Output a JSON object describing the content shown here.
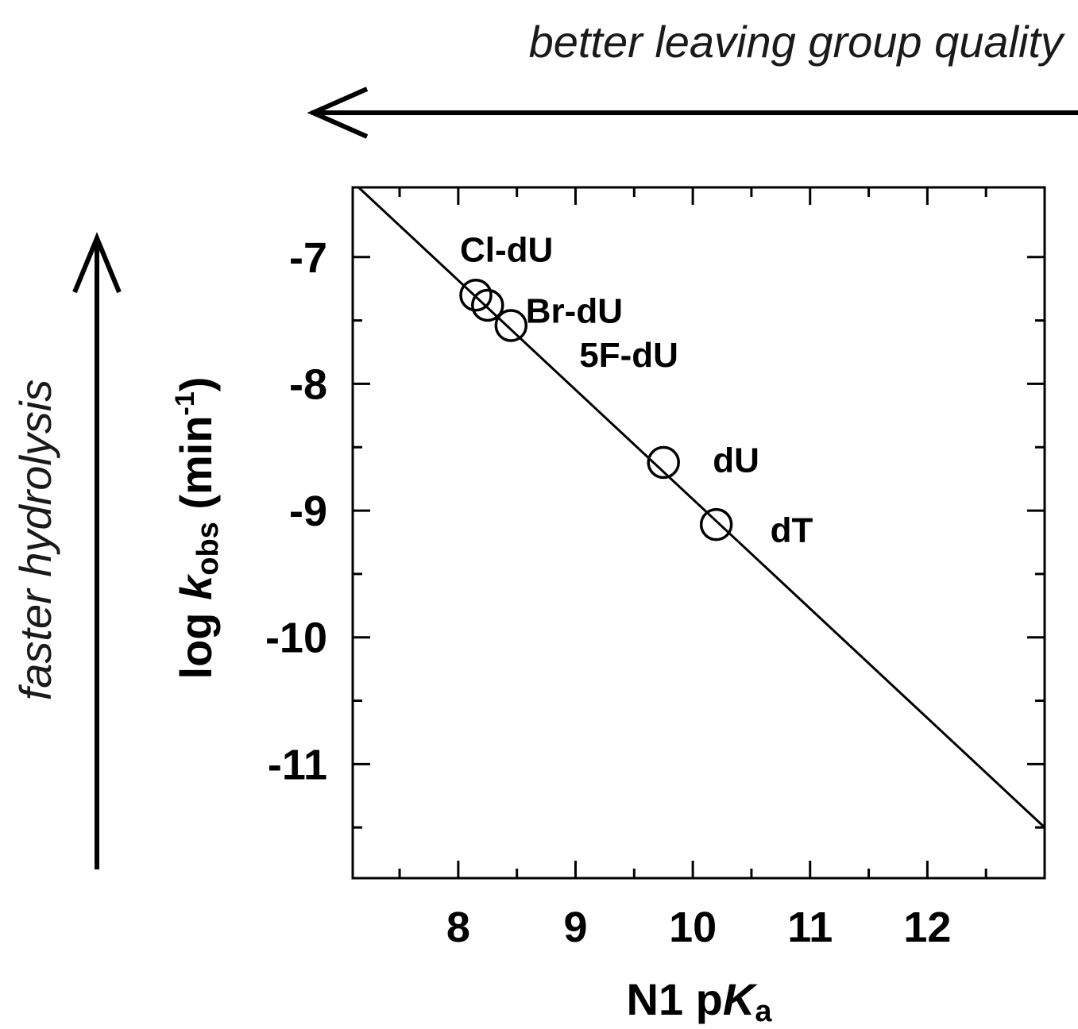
{
  "chart_data": {
    "type": "scatter",
    "title": "",
    "xlabel": {
      "main": "N1 p",
      "italic": "K",
      "sub": "a"
    },
    "ylabel": {
      "main": "log ",
      "italic": "k",
      "sub": "obs",
      "tail": " (min",
      "sup": "-1",
      "close": ")"
    },
    "xlim": [
      7.1,
      13.0
    ],
    "ylim": [
      -11.9,
      -6.45
    ],
    "xticks": [
      8,
      9,
      10,
      11,
      12
    ],
    "xticks_minor": [
      7.5,
      8.5,
      9.5,
      10.5,
      11.5,
      12.5
    ],
    "yticks": [
      -7,
      -8,
      -9,
      -10,
      -11
    ],
    "yticks_minor": [
      -7.5,
      -8.5,
      -9.5,
      -10.5,
      -11.5
    ],
    "grid": false,
    "points": [
      {
        "label": "Cl-dU",
        "x": 8.15,
        "y": -7.3
      },
      {
        "label": "Br-dU",
        "x": 8.25,
        "y": -7.38
      },
      {
        "label": "5F-dU",
        "x": 8.45,
        "y": -7.54
      },
      {
        "label": "dU",
        "x": 9.75,
        "y": -8.62
      },
      {
        "label": "dT",
        "x": 10.2,
        "y": -9.11
      }
    ],
    "fit_line": {
      "x": [
        7.15,
        13.0
      ],
      "y": [
        -6.45,
        -11.5
      ]
    }
  },
  "annotations": {
    "top_arrow_label": "better leaving group quality",
    "left_arrow_label": "faster hydrolysis"
  }
}
